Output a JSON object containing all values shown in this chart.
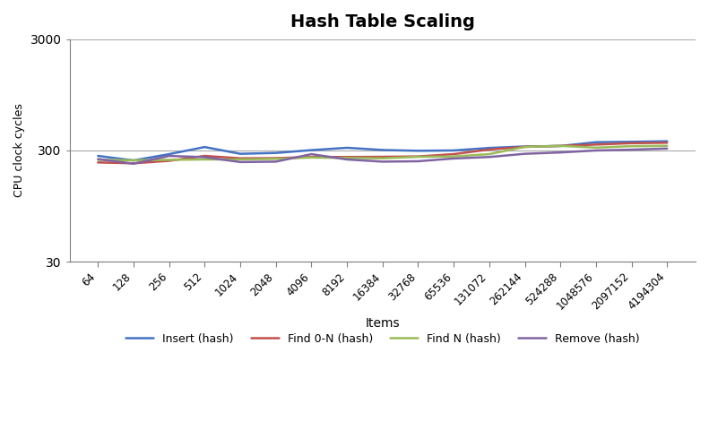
{
  "title": "Hash Table Scaling",
  "xlabel": "Items",
  "ylabel": "CPU clock cycles",
  "x_labels": [
    "64",
    "128",
    "256",
    "512",
    "1024",
    "2048",
    "4096",
    "8192",
    "16384",
    "32768",
    "65536",
    "131072",
    "262144",
    "524288",
    "1048576",
    "2097152",
    "4194304"
  ],
  "series": {
    "Insert (hash)": {
      "color": "#4472C4",
      "values": [
        268,
        244,
        278,
        322,
        280,
        285,
        302,
        317,
        303,
        298,
        300,
        316,
        326,
        329,
        356,
        359,
        363
      ]
    },
    "Find 0-N (hash)": {
      "color": "#C0504D",
      "values": [
        234,
        230,
        242,
        268,
        255,
        256,
        262,
        262,
        263,
        265,
        278,
        306,
        323,
        330,
        339,
        349,
        352
      ]
    },
    "Find N (hash)": {
      "color": "#9BBB59",
      "values": [
        247,
        245,
        247,
        249,
        249,
        252,
        259,
        257,
        255,
        263,
        265,
        278,
        323,
        330,
        318,
        328,
        330
      ]
    },
    "Remove (hash)": {
      "color": "#8064A2",
      "values": [
        251,
        228,
        268,
        261,
        236,
        238,
        278,
        249,
        238,
        240,
        254,
        262,
        280,
        288,
        300,
        305,
        312
      ]
    }
  },
  "ylim": [
    30,
    3000
  ],
  "yticks": [
    30,
    300,
    3000
  ],
  "background_color": "#FFFFFF",
  "grid_color": "#AAAAAA",
  "border_color": "#808080"
}
